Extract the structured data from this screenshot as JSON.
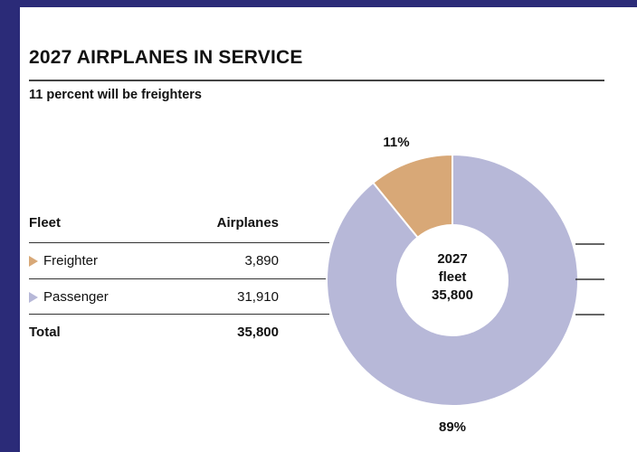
{
  "title": "2027 AIRPLANES IN SERVICE",
  "subtitle": "11 percent will be freighters",
  "table": {
    "headers": {
      "fleet": "Fleet",
      "airplanes": "Airplanes"
    },
    "rows": [
      {
        "label": "Freighter",
        "value": "3,890",
        "color": "#d8a877"
      },
      {
        "label": "Passenger",
        "value": "31,910",
        "color": "#b7b8d8"
      }
    ],
    "total": {
      "label": "Total",
      "value": "35,800"
    }
  },
  "chart_data": {
    "type": "pie",
    "style": "donut",
    "categories": [
      "Freighter",
      "Passenger"
    ],
    "values": [
      3890,
      31910
    ],
    "data_labels": [
      "11%",
      "89%"
    ],
    "colors": [
      "#d8a877",
      "#b7b8d8"
    ],
    "center_label": [
      "2027",
      "fleet",
      "35,800"
    ]
  }
}
